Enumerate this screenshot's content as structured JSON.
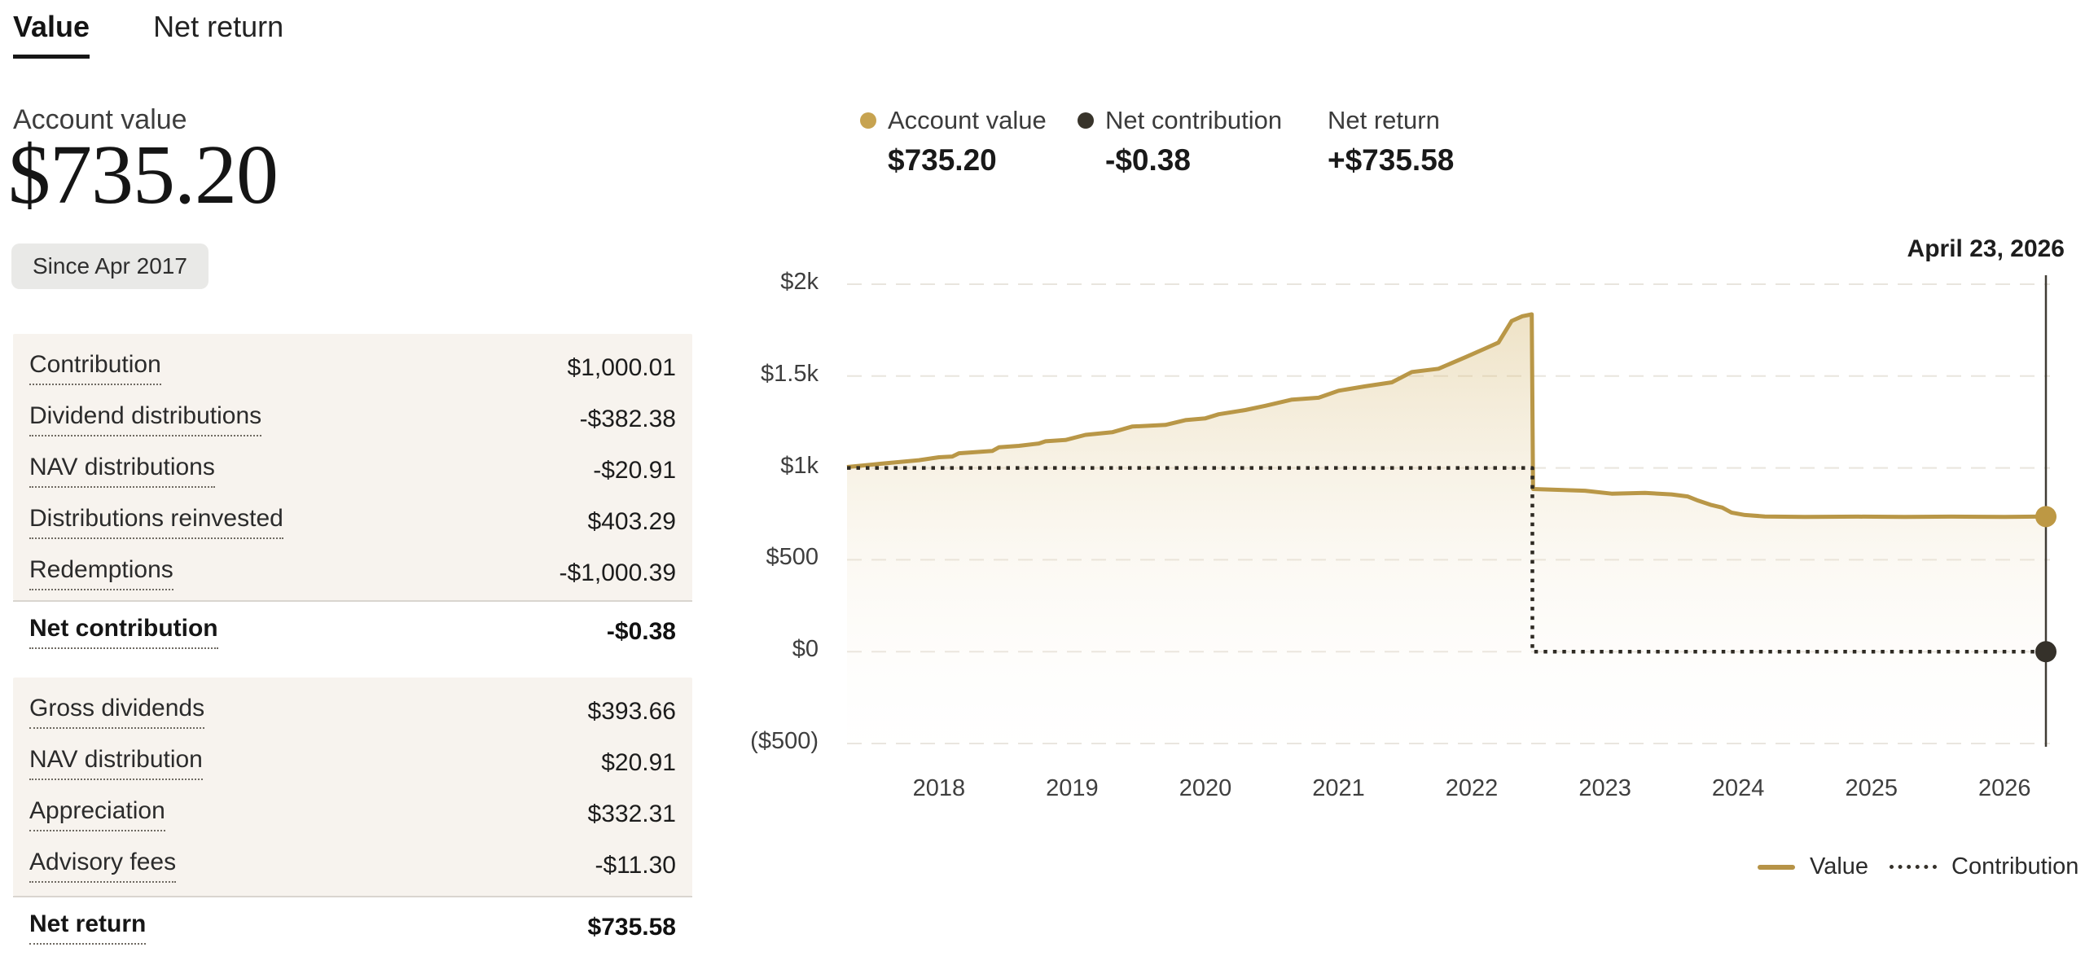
{
  "tabs": [
    {
      "label": "Value",
      "active": true
    },
    {
      "label": "Net return",
      "active": false
    }
  ],
  "summary": {
    "label": "Account value",
    "amount": "$735.20",
    "period_badge": "Since Apr 2017"
  },
  "breakdown": {
    "group1": {
      "rows": [
        {
          "label": "Contribution",
          "value": "$1,000.01"
        },
        {
          "label": "Dividend distributions",
          "value": "-$382.38"
        },
        {
          "label": "NAV distributions",
          "value": "-$20.91"
        },
        {
          "label": "Distributions reinvested",
          "value": "$403.29"
        },
        {
          "label": "Redemptions",
          "value": "-$1,000.39"
        }
      ],
      "total": {
        "label": "Net contribution",
        "value": "-$0.38"
      }
    },
    "group2": {
      "rows": [
        {
          "label": "Gross dividends",
          "value": "$393.66"
        },
        {
          "label": "NAV distribution",
          "value": "$20.91"
        },
        {
          "label": "Appreciation",
          "value": "$332.31"
        },
        {
          "label": "Advisory fees",
          "value": "-$11.30"
        }
      ],
      "total": {
        "label": "Net return",
        "value": "$735.58"
      }
    }
  },
  "chart_legend": [
    {
      "label": "Account value",
      "value": "$735.20",
      "dot_color": "#c7a350"
    },
    {
      "label": "Net contribution",
      "value": "-$0.38",
      "dot_color": "#38342b"
    },
    {
      "label": "Net return",
      "value": "+$735.58",
      "dot_color": null
    }
  ],
  "chart_data": {
    "type": "area",
    "title": "Account value over time",
    "cursor_date": "April 23, 2026",
    "x_domain": [
      2017.31,
      2026.31
    ],
    "y_domain": [
      -500,
      2000
    ],
    "grid": true,
    "legend_position": "bottom-right",
    "y_ticks": [
      {
        "label": "$2k",
        "value": 2000
      },
      {
        "label": "$1.5k",
        "value": 1500
      },
      {
        "label": "$1k",
        "value": 1000
      },
      {
        "label": "$500",
        "value": 500
      },
      {
        "label": "$0",
        "value": 0
      },
      {
        "label": "($500)",
        "value": -500
      }
    ],
    "x_ticks": [
      "2018",
      "2019",
      "2020",
      "2021",
      "2022",
      "2023",
      "2024",
      "2025",
      "2026"
    ],
    "series": [
      {
        "name": "Value",
        "color": "#b99747",
        "line_style": "solid",
        "area_fill": true,
        "points": [
          [
            2017.31,
            1005
          ],
          [
            2017.5,
            1018
          ],
          [
            2017.55,
            1022
          ],
          [
            2017.7,
            1032
          ],
          [
            2017.85,
            1042
          ],
          [
            2018.0,
            1058
          ],
          [
            2018.1,
            1062
          ],
          [
            2018.15,
            1080
          ],
          [
            2018.4,
            1092
          ],
          [
            2018.45,
            1112
          ],
          [
            2018.6,
            1120
          ],
          [
            2018.75,
            1133
          ],
          [
            2018.8,
            1145
          ],
          [
            2018.95,
            1152
          ],
          [
            2019.1,
            1180
          ],
          [
            2019.3,
            1194
          ],
          [
            2019.45,
            1225
          ],
          [
            2019.7,
            1234
          ],
          [
            2019.85,
            1260
          ],
          [
            2020.0,
            1270
          ],
          [
            2020.1,
            1292
          ],
          [
            2020.3,
            1315
          ],
          [
            2020.45,
            1338
          ],
          [
            2020.65,
            1372
          ],
          [
            2020.85,
            1382
          ],
          [
            2021.0,
            1420
          ],
          [
            2021.2,
            1444
          ],
          [
            2021.4,
            1466
          ],
          [
            2021.55,
            1522
          ],
          [
            2021.75,
            1540
          ],
          [
            2021.95,
            1602
          ],
          [
            2022.1,
            1650
          ],
          [
            2022.2,
            1682
          ],
          [
            2022.3,
            1800
          ],
          [
            2022.38,
            1826
          ],
          [
            2022.45,
            1836
          ],
          [
            2022.46,
            885
          ],
          [
            2022.6,
            882
          ],
          [
            2022.85,
            876
          ],
          [
            2023.05,
            860
          ],
          [
            2023.3,
            864
          ],
          [
            2023.5,
            856
          ],
          [
            2023.62,
            845
          ],
          [
            2023.7,
            822
          ],
          [
            2023.8,
            798
          ],
          [
            2023.88,
            784
          ],
          [
            2023.95,
            757
          ],
          [
            2024.05,
            744
          ],
          [
            2024.2,
            736
          ],
          [
            2024.5,
            733
          ],
          [
            2024.9,
            735
          ],
          [
            2025.25,
            733
          ],
          [
            2025.6,
            735
          ],
          [
            2026.0,
            733
          ],
          [
            2026.31,
            735.2
          ]
        ]
      },
      {
        "name": "Contribution",
        "color": "#2e2a23",
        "line_style": "dotted",
        "area_fill": false,
        "points": [
          [
            2017.31,
            1000.01
          ],
          [
            2022.455,
            1000.01
          ],
          [
            2022.455,
            -0.38
          ],
          [
            2026.31,
            -0.38
          ]
        ]
      }
    ],
    "end_markers": [
      {
        "series": "Value",
        "value": 735.2,
        "color": "#bd9844"
      },
      {
        "series": "Contribution",
        "value": -0.38,
        "color": "#35312a"
      }
    ],
    "bottom_legend": [
      {
        "label": "Value",
        "style": "solid"
      },
      {
        "label": "Contribution",
        "style": "dotted"
      }
    ]
  }
}
